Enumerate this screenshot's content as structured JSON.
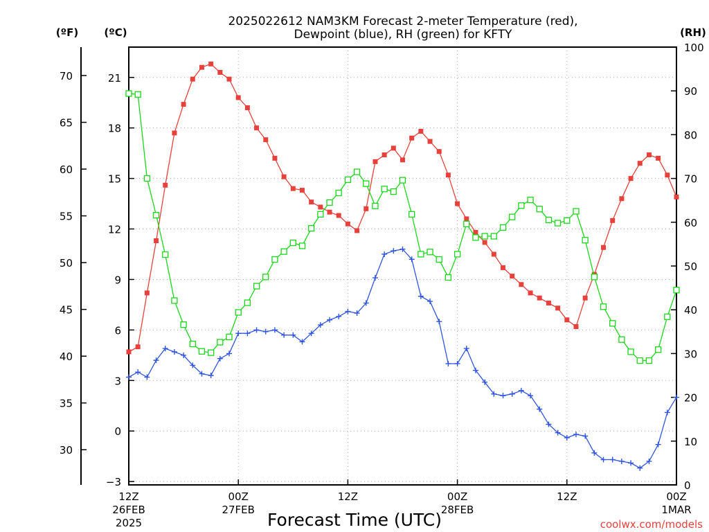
{
  "chart_data": {
    "type": "line",
    "title_line1": "2025022612 NAM3KM Forecast 2-meter Temperature (red),",
    "title_line2": "Dewpoint (blue), RH (green) for KFTY",
    "xlabel": "Forecast Time (UTC)",
    "credit": "coolwx.com/models",
    "units": {
      "fahrenheit": "(ºF)",
      "celsius": "(ºC)",
      "rh": "(RH)"
    },
    "x_ticks": [
      {
        "hour": 0,
        "line1": "12Z",
        "line2": "26FEB",
        "line3": "2025"
      },
      {
        "hour": 12,
        "line1": "00Z",
        "line2": "27FEB",
        "line3": ""
      },
      {
        "hour": 24,
        "line1": "12Z",
        "line2": "",
        "line3": ""
      },
      {
        "hour": 36,
        "line1": "00Z",
        "line2": "28FEB",
        "line3": ""
      },
      {
        "hour": 48,
        "line1": "12Z",
        "line2": "",
        "line3": ""
      },
      {
        "hour": 60,
        "line1": "00Z",
        "line2": "1MAR",
        "line3": ""
      }
    ],
    "xlim": [
      0,
      60
    ],
    "celsius_ticks": [
      -3,
      0,
      3,
      6,
      9,
      12,
      15,
      18,
      21
    ],
    "celsius_lim": [
      -3.2,
      22.8
    ],
    "fahrenheit_ticks": [
      30,
      35,
      40,
      45,
      50,
      55,
      60,
      65,
      70
    ],
    "rh_ticks": [
      0,
      10,
      20,
      30,
      40,
      50,
      60,
      70,
      80,
      90,
      100
    ],
    "rh_lim": [
      0,
      100
    ],
    "grid": true,
    "series": [
      {
        "name": "Temperature",
        "unit": "C",
        "color": "#e8413c",
        "marker": "filled-square",
        "values": [
          4.7,
          5.0,
          8.2,
          11.3,
          14.6,
          17.7,
          19.4,
          20.9,
          21.6,
          21.8,
          21.3,
          20.9,
          19.8,
          19.2,
          18.0,
          17.3,
          16.2,
          15.1,
          14.4,
          14.3,
          13.6,
          13.3,
          13.0,
          12.8,
          12.3,
          11.9,
          13.2,
          16.0,
          16.4,
          16.8,
          16.1,
          17.4,
          17.8,
          17.2,
          16.6,
          15.2,
          13.5,
          12.6,
          11.8,
          11.2,
          10.5,
          9.7,
          9.2,
          8.7,
          8.2,
          7.9,
          7.6,
          7.3,
          6.6,
          6.2,
          7.9,
          9.3,
          10.9,
          12.5,
          13.8,
          15.0,
          15.9,
          16.4,
          16.2,
          15.2,
          13.9
        ]
      },
      {
        "name": "Dewpoint",
        "unit": "C",
        "color": "#2f54e0",
        "marker": "plus",
        "values": [
          3.2,
          3.5,
          3.2,
          4.2,
          4.9,
          4.7,
          4.5,
          3.9,
          3.4,
          3.3,
          4.3,
          4.6,
          5.8,
          5.8,
          6.0,
          5.9,
          6.0,
          5.7,
          5.7,
          5.3,
          5.8,
          6.3,
          6.6,
          6.8,
          7.1,
          7.0,
          7.6,
          9.1,
          10.5,
          10.7,
          10.8,
          10.2,
          8.0,
          7.7,
          6.5,
          4.0,
          4.0,
          4.9,
          3.6,
          2.9,
          2.2,
          2.1,
          2.2,
          2.4,
          2.1,
          1.3,
          0.4,
          -0.1,
          -0.4,
          -0.2,
          -0.3,
          -1.3,
          -1.7,
          -1.7,
          -1.8,
          -1.9,
          -2.2,
          -1.8,
          -0.8,
          1.1,
          2.0
        ]
      },
      {
        "name": "RH",
        "unit": "%",
        "color": "#19d719",
        "marker": "open-square",
        "values": [
          89.4,
          89.2,
          70.0,
          61.6,
          52.6,
          42.1,
          36.6,
          32.2,
          30.5,
          30.2,
          32.6,
          33.8,
          39.4,
          41.6,
          45.4,
          47.5,
          51.5,
          53.3,
          55.3,
          54.6,
          58.6,
          61.8,
          64.5,
          66.7,
          69.7,
          71.5,
          68.8,
          63.7,
          67.6,
          67.0,
          69.6,
          61.8,
          52.7,
          53.2,
          51.5,
          47.4,
          52.7,
          59.6,
          56.5,
          56.8,
          56.8,
          58.8,
          61.2,
          63.8,
          65.1,
          63.0,
          60.5,
          59.8,
          60.4,
          62.5,
          55.9,
          47.5,
          40.7,
          36.9,
          33.2,
          30.4,
          28.4,
          28.4,
          30.9,
          38.4,
          44.5
        ]
      }
    ]
  }
}
